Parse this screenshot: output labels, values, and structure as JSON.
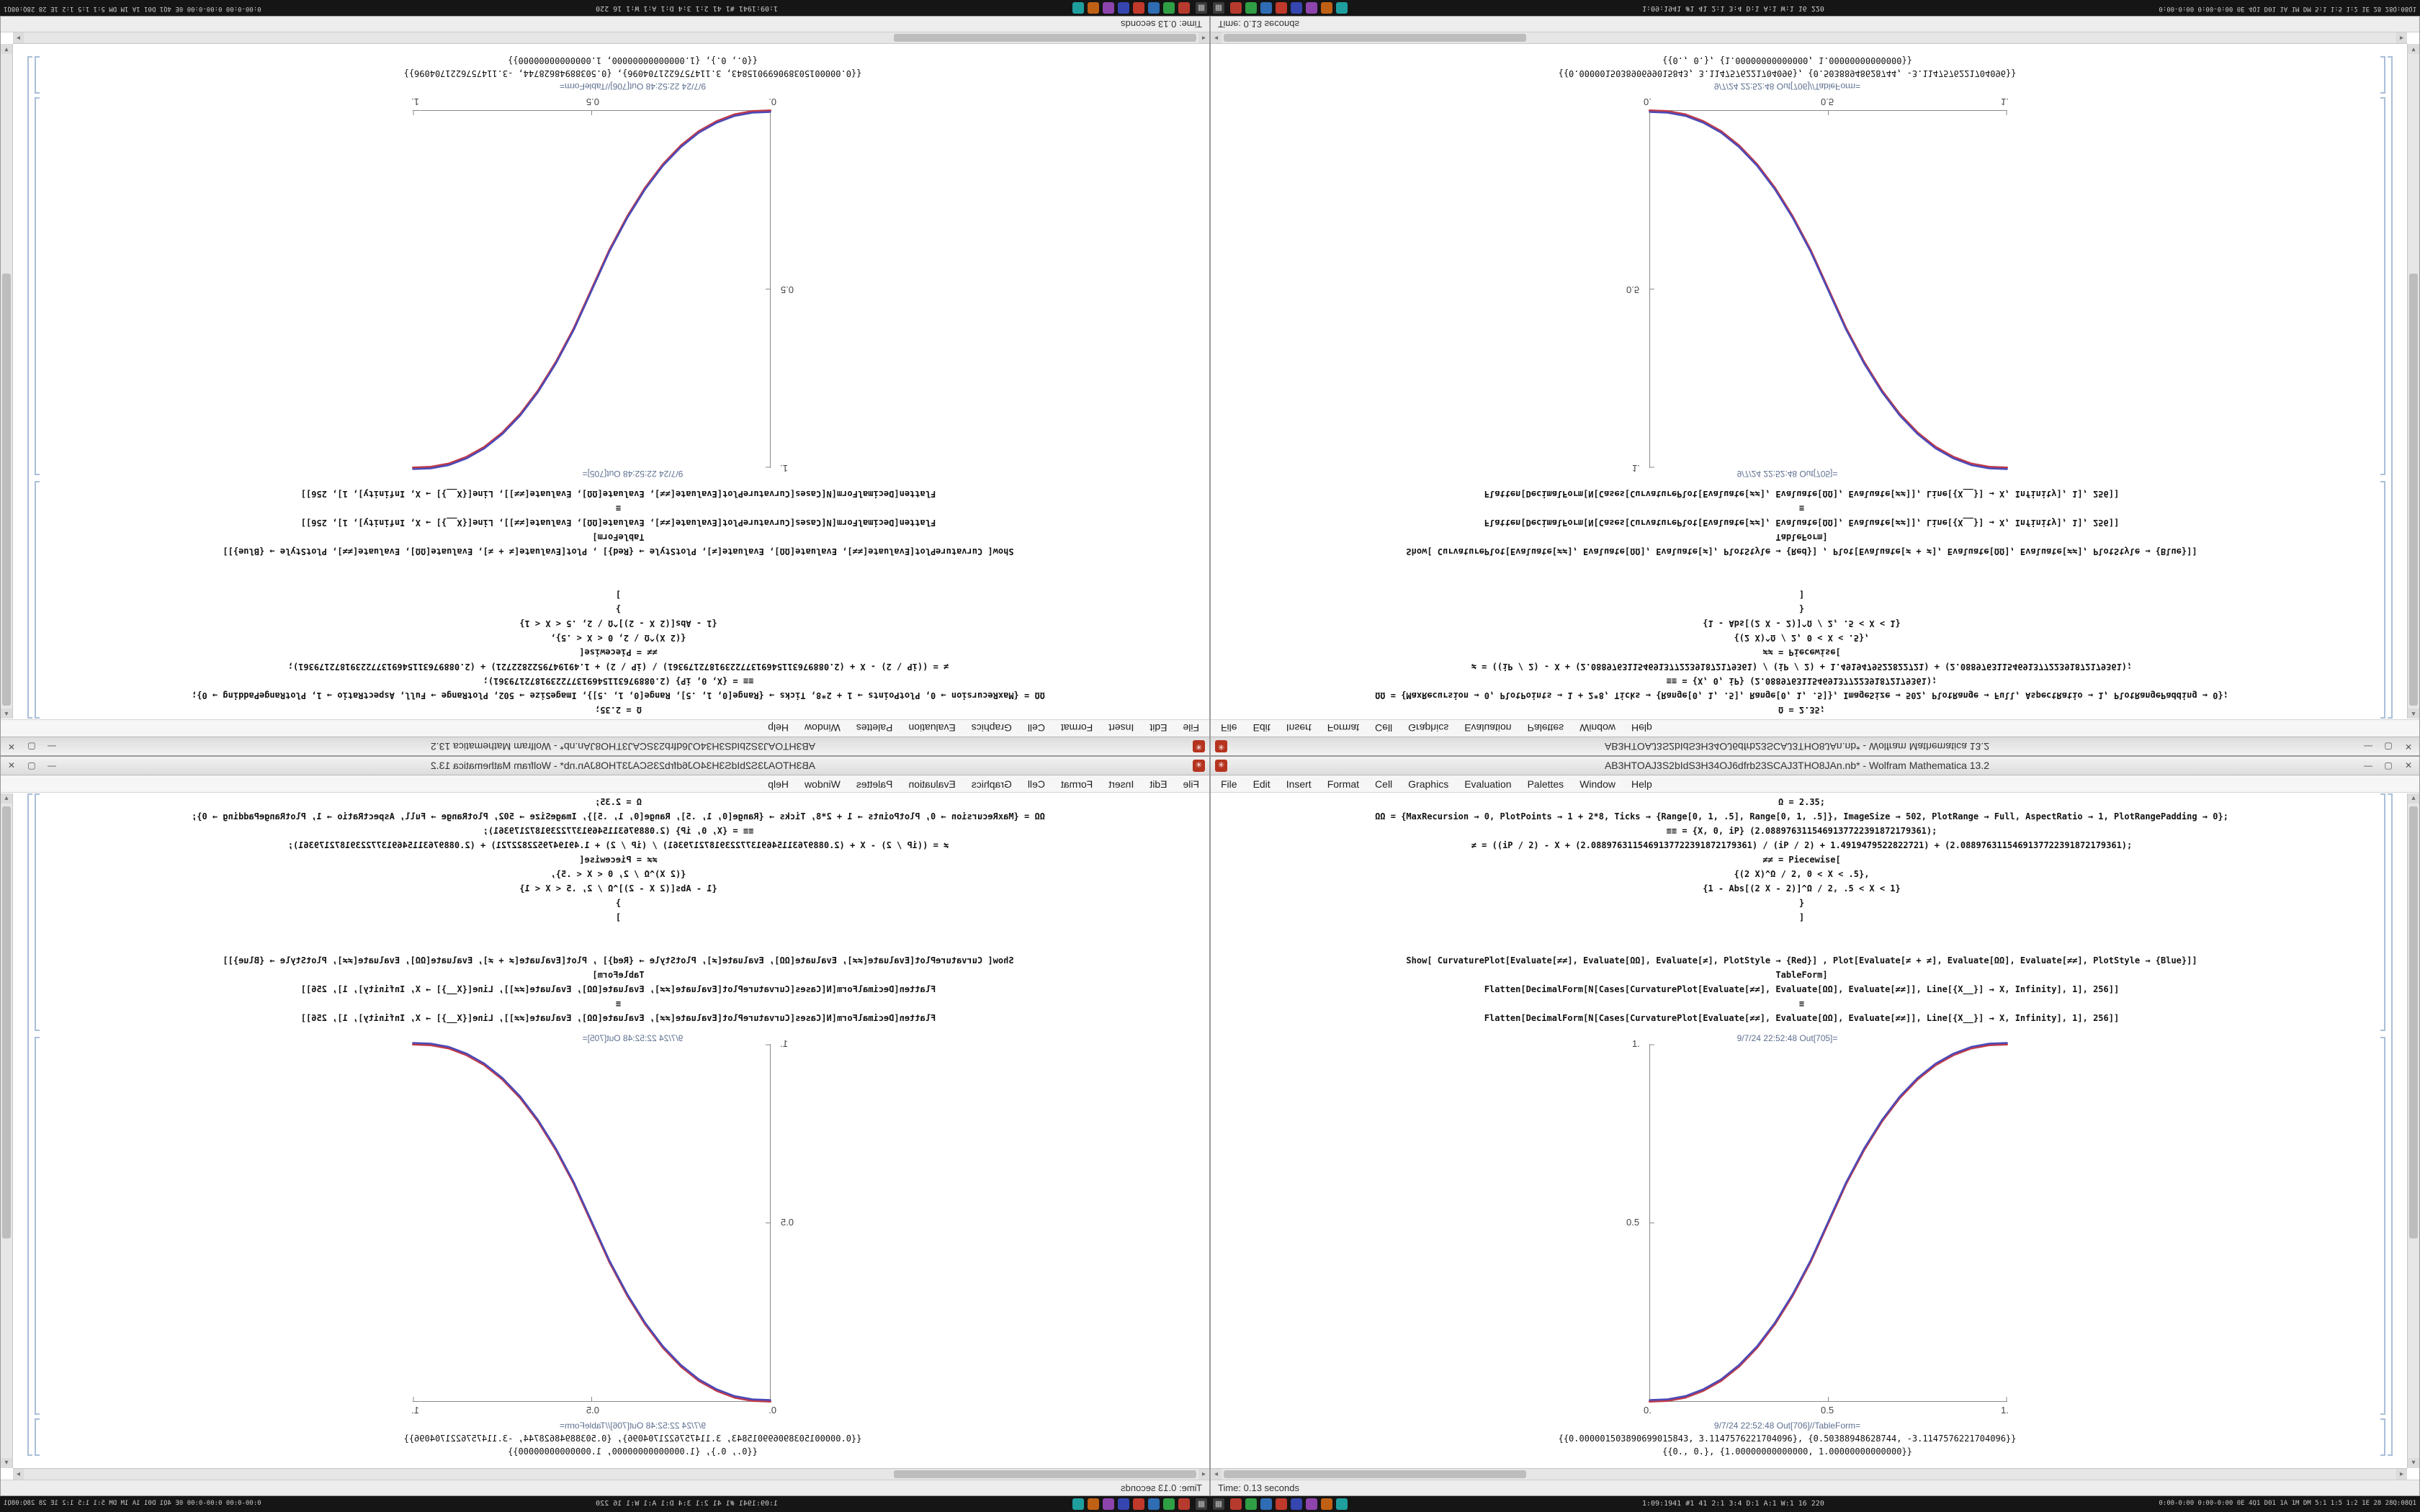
{
  "window": {
    "titlebar": {
      "title": "AB3HTOAJ3S2bIdS3H34OJ6dfrb23SCAJ3THO8JAn.nb* - Wolfram Mathematica 13.2",
      "app_icon": {
        "glyph": "✳",
        "color": "#b5331f"
      },
      "buttons": [
        {
          "name": "minimize-button",
          "glyph": "—"
        },
        {
          "name": "maximize-button",
          "glyph": "▢"
        },
        {
          "name": "close-button",
          "glyph": "✕"
        }
      ]
    },
    "menubar": {
      "items": [
        "File",
        "Edit",
        "Insert",
        "Format",
        "Cell",
        "Graphics",
        "Evaluation",
        "Palettes",
        "Window",
        "Help"
      ]
    },
    "notebook": {
      "code_lines": [
        "Ω = 2.35;",
        "ΩΩ = {MaxRecursion → 0, PlotPoints → 1 + 2*8, Ticks → {Range[0, 1, .5], Range[0, 1, .5]}, ImageSize → 502, PlotRange → Full, AspectRatio → 1, PlotRangePadding → 0};",
        "≡≡ = {X, 0, iP} (2.0889763115469137722391872179361);",
        "≠ = ((iP / 2) - X + (2.0889763115469137722391872179361) / (iP / 2) + 1.4919479522822721) + (2.0889763115469137722391872179361);",
        "≠≠ = Piecewise[",
        "{(2 X)^Ω / 2, 0 < X < .5},",
        "{1 - Abs[(2 X - 2)]^Ω / 2, .5 < X < 1}",
        "}",
        "]",
        "",
        "",
        "Show[ CurvaturePlot[Evaluate[≠≠], Evaluate[ΩΩ], Evaluate[≠], PlotStyle → {Red}] , Plot[Evaluate[≠ + ≠], Evaluate[ΩΩ], Evaluate[≠≠], PlotStyle → {Blue}]]",
        "TableForm]",
        "Flatten[DecimalForm[N[Cases[CurvaturePlot[Evaluate[≠≠], Evaluate[ΩΩ], Evaluate[≠≠]], Line[{X__}] → X, Infinity], 1], 256]]",
        "≡",
        "Flatten[DecimalForm[N[Cases[CurvaturePlot[Evaluate[≠≠], Evaluate[ΩΩ], Evaluate[≠≠]], Line[{X__}] → X, Infinity], 1], 256]]"
      ],
      "out_plot_label": "9/7/24  22:52:48  Out[705]=",
      "out_table_label": "9/7/24  22:52:48  Out[706]//TableForm=",
      "result_lines": [
        "{{0.000001503890699015843, 3.1147576221704096}, {0.50388948628744, -3.1147576221704096}}",
        "{{0., 0.}, {1.00000000000000, 1.00000000000000}}"
      ]
    },
    "scrollbar": {
      "up": "▴",
      "down": "▾",
      "left": "◂",
      "right": "▸"
    },
    "statusbar": {
      "text": "Time: 0.13 seconds"
    }
  },
  "taskbar": {
    "start_glyph": "▦",
    "app_icons": [
      {
        "name": "taskbar-app-red",
        "color": "#b73a2e"
      },
      {
        "name": "taskbar-app-green",
        "color": "#2f9e44"
      },
      {
        "name": "taskbar-app-blue",
        "color": "#2e6db4"
      },
      {
        "name": "taskbar-app-crimson",
        "color": "#c0392b"
      },
      {
        "name": "taskbar-app-indigo",
        "color": "#3546b0"
      },
      {
        "name": "taskbar-app-purple",
        "color": "#8e44ad"
      },
      {
        "name": "taskbar-app-orange",
        "color": "#c06014"
      },
      {
        "name": "taskbar-app-teal",
        "color": "#1f9e9e"
      }
    ],
    "center_status": "1:09:1941 #1 41 2:1 3:4 D:1 A:1 W:1 16 220",
    "right_status": "0:00-0:00 0:00-0:00 0E 4Q1 D01 1A 1M DM 5:1 1:5 1:2 1E 28 28Q:08Q1"
  },
  "chart_data": {
    "type": "line",
    "title": "",
    "xlabel": "",
    "ylabel": "",
    "xlim": [
      0,
      1
    ],
    "ylim": [
      0,
      1
    ],
    "x_ticks": [
      0,
      0.5,
      1
    ],
    "x_tick_labels": [
      "0.",
      "0.5",
      "1."
    ],
    "y_ticks": [
      0.5,
      1
    ],
    "y_tick_labels": [
      "0.5",
      "1."
    ],
    "grid": false,
    "legend": "none",
    "x": [
      0,
      0.05,
      0.1,
      0.15,
      0.2,
      0.25,
      0.3,
      0.35,
      0.4,
      0.45,
      0.5,
      0.55,
      0.6,
      0.65,
      0.7,
      0.75,
      0.8,
      0.85,
      0.9,
      0.95,
      1
    ],
    "series": [
      {
        "name": "CurvaturePlot (Red)",
        "color": "#c03a4a",
        "values": [
          0,
          0.002,
          0.011,
          0.03,
          0.058,
          0.098,
          0.15,
          0.216,
          0.296,
          0.39,
          0.5,
          0.61,
          0.704,
          0.784,
          0.85,
          0.902,
          0.942,
          0.97,
          0.989,
          0.998,
          1
        ]
      },
      {
        "name": "Plot (Blue)",
        "color": "#4a4ab8",
        "values": [
          0,
          0.002,
          0.011,
          0.03,
          0.058,
          0.098,
          0.15,
          0.216,
          0.296,
          0.39,
          0.5,
          0.61,
          0.704,
          0.784,
          0.85,
          0.902,
          0.942,
          0.97,
          0.989,
          0.998,
          1
        ]
      }
    ]
  }
}
